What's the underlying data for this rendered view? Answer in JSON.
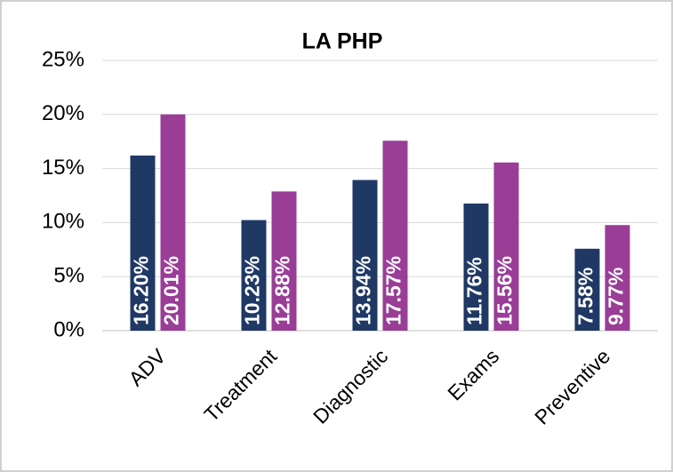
{
  "chart_data": {
    "type": "bar",
    "title": "LA PHP",
    "categories": [
      "ADV",
      "Treatment",
      "Diagnostic",
      "Exams",
      "Preventive"
    ],
    "series": [
      {
        "color": "#1f3864",
        "values": [
          16.2,
          10.23,
          13.94,
          11.76,
          7.58
        ],
        "value_labels": [
          "16.20%",
          "10.23%",
          "13.94%",
          "11.76%",
          "7.58%"
        ]
      },
      {
        "color": "#993d97",
        "values": [
          20.01,
          12.88,
          17.57,
          15.56,
          9.77
        ],
        "value_labels": [
          "20.01%",
          "12.88%",
          "17.57%",
          "15.56%",
          "9.77%"
        ]
      }
    ],
    "ylim": [
      0,
      25
    ],
    "yticks": [
      {
        "value": 0,
        "label": "0%"
      },
      {
        "value": 5,
        "label": "5%"
      },
      {
        "value": 10,
        "label": "10%"
      },
      {
        "value": 15,
        "label": "15%"
      },
      {
        "value": 20,
        "label": "20%"
      },
      {
        "value": 25,
        "label": "25%"
      }
    ],
    "grid": true
  }
}
